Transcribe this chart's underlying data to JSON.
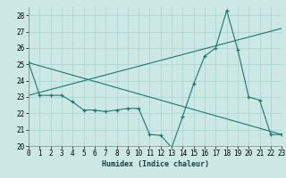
{
  "xlabel": "Humidex (Indice chaleur)",
  "background_color": "#cce8e4",
  "grid_color": "#aad8d2",
  "line_color": "#1a7a6e",
  "xlim": [
    0,
    23
  ],
  "ylim": [
    20,
    28.5
  ],
  "yticks": [
    20,
    21,
    22,
    23,
    24,
    25,
    26,
    27,
    28
  ],
  "xticks": [
    0,
    1,
    2,
    3,
    4,
    5,
    6,
    7,
    8,
    9,
    10,
    11,
    12,
    13,
    14,
    15,
    16,
    17,
    18,
    19,
    20,
    21,
    22,
    23
  ],
  "curve_x": [
    0,
    1,
    2,
    3,
    4,
    5,
    6,
    7,
    8,
    9,
    10,
    11,
    12,
    13,
    14,
    15,
    16,
    17,
    18,
    19,
    20,
    21,
    22,
    23
  ],
  "curve_y": [
    25.1,
    23.1,
    23.1,
    23.1,
    22.7,
    22.2,
    22.2,
    22.1,
    22.2,
    22.3,
    22.3,
    20.7,
    20.65,
    19.9,
    21.8,
    23.8,
    25.5,
    26.0,
    28.3,
    25.9,
    23.0,
    22.8,
    20.7,
    20.7
  ],
  "line1_x": [
    0,
    23
  ],
  "line1_y": [
    23.1,
    27.2
  ],
  "line2_x": [
    0,
    23
  ],
  "line2_y": [
    25.1,
    20.7
  ],
  "tick_fontsize": 5.5,
  "xlabel_fontsize": 6
}
